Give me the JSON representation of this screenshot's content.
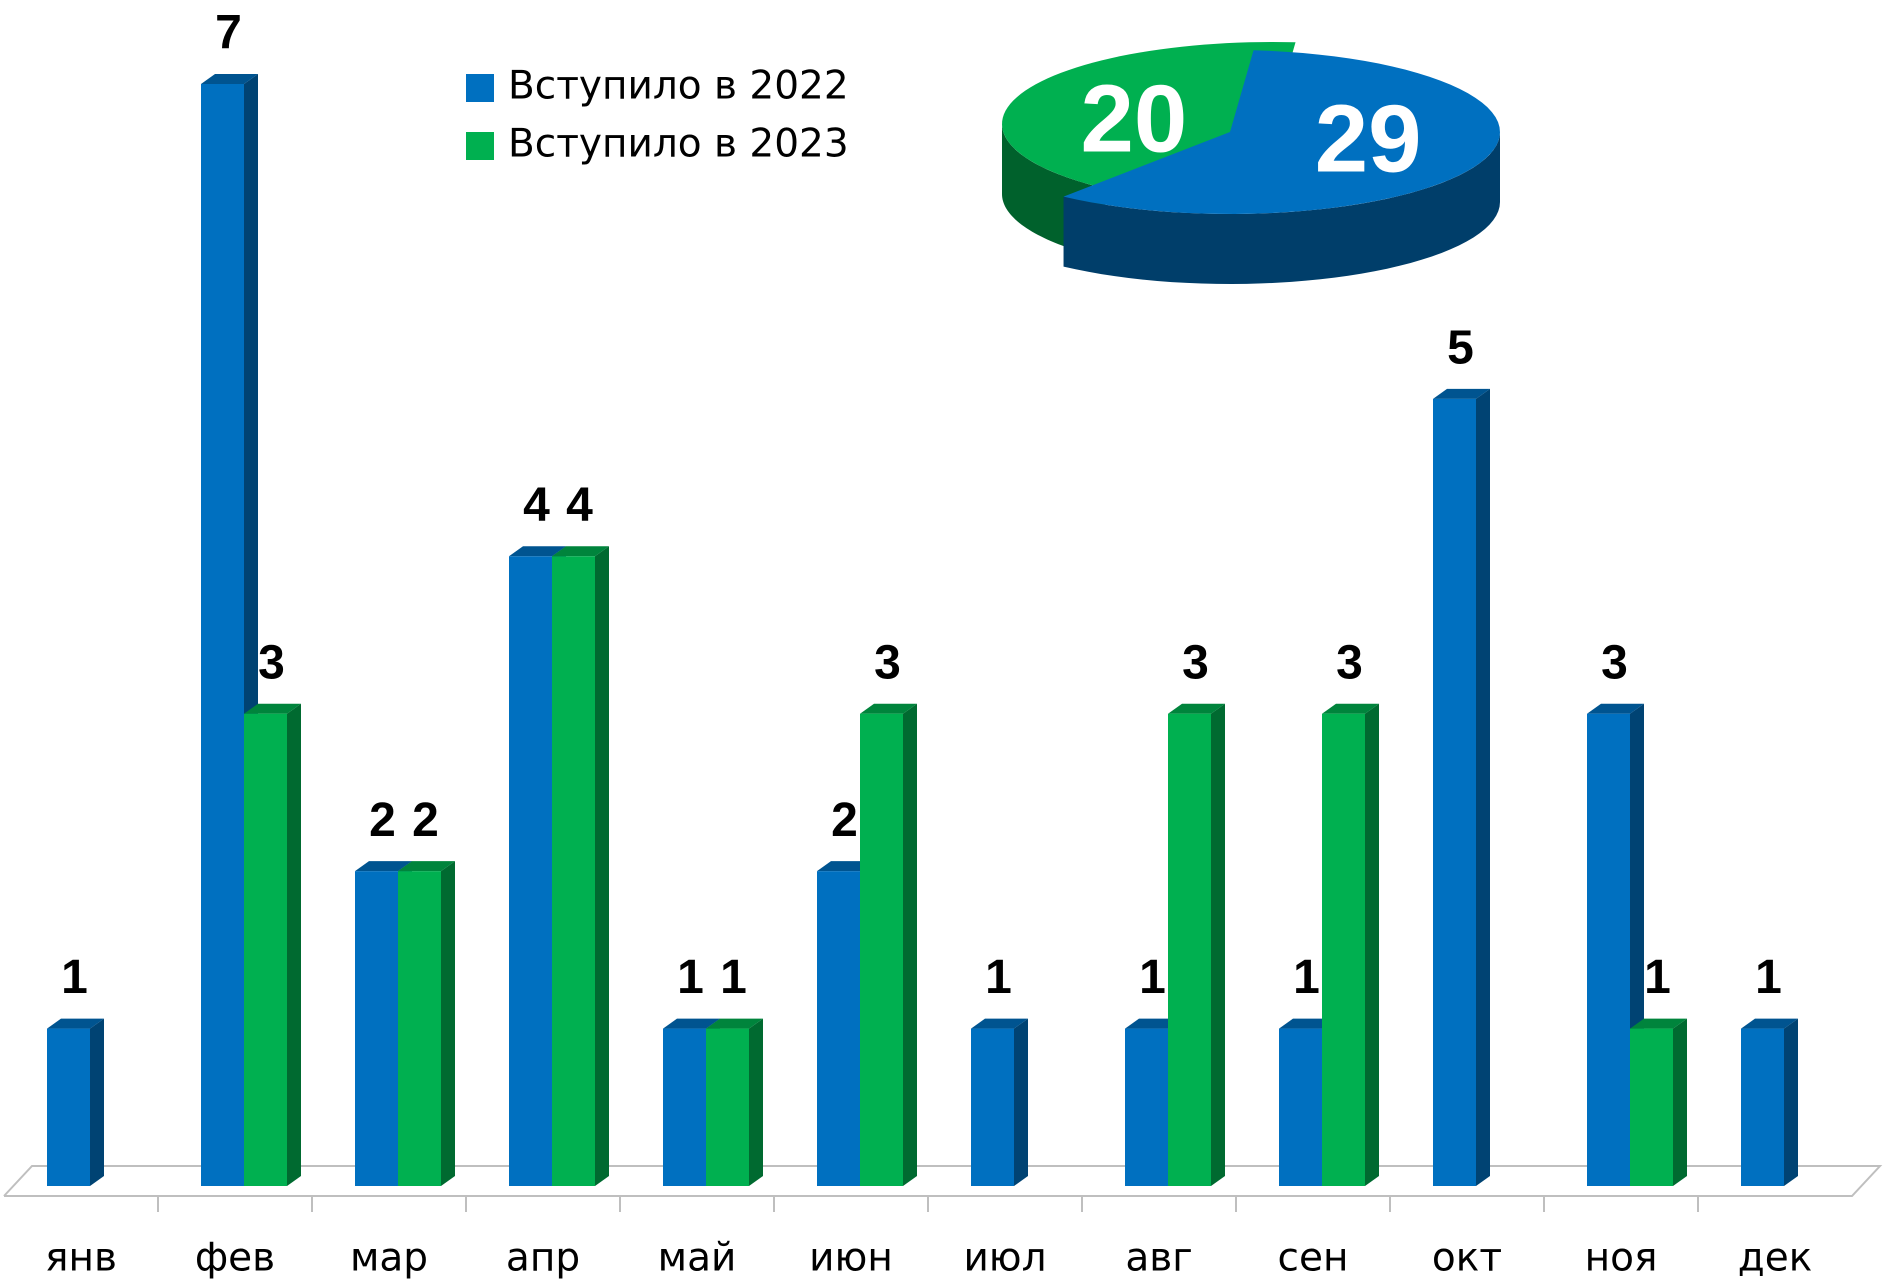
{
  "chart_data": [
    {
      "type": "bar",
      "categories": [
        "янв",
        "фев",
        "мар",
        "апр",
        "май",
        "июн",
        "июл",
        "авг",
        "сен",
        "окт",
        "ноя",
        "дек"
      ],
      "series": [
        {
          "name": "Вступило в 2022",
          "color": "#0070c0",
          "values": [
            1,
            7,
            2,
            4,
            1,
            2,
            1,
            1,
            1,
            5,
            3,
            1
          ]
        },
        {
          "name": "Вступило в 2023",
          "color": "#00b050",
          "values": [
            null,
            3,
            2,
            4,
            1,
            3,
            null,
            3,
            3,
            null,
            1,
            null
          ]
        }
      ],
      "ylim": [
        0,
        7
      ],
      "grid": false,
      "legend": "top"
    },
    {
      "type": "pie",
      "categories": [
        "Вступило в 2022",
        "Вступило в 2023"
      ],
      "values": [
        29,
        20
      ],
      "colors": [
        "#0070c0",
        "#00b050"
      ]
    }
  ]
}
